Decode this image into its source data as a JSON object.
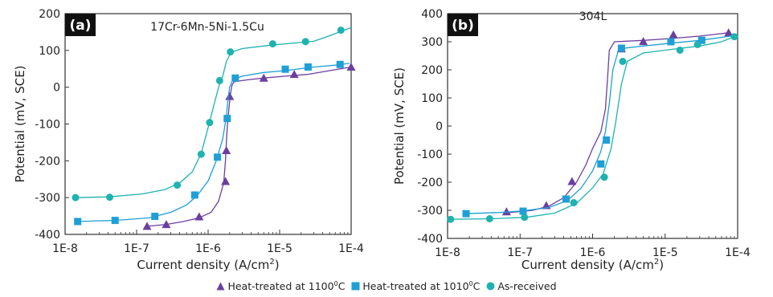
{
  "chart_data": [
    {
      "type": "line",
      "panel_label": "(a)",
      "title": "17Cr-6Mn-5Ni-1.5Cu",
      "xlabel": "Current density (A/cm",
      "xlabel_sup": "2",
      "xlabel_close": ")",
      "ylabel": "Potential (mV, SCE)",
      "xscale": "log",
      "xlim": [
        1e-08,
        0.0001
      ],
      "ylim": [
        -400,
        200
      ],
      "xticks": [
        "1E-8",
        "1E-7",
        "1E-6",
        "1E-5",
        "1E-4"
      ],
      "yticks": [
        -400,
        -300,
        -200,
        -100,
        0,
        100,
        200
      ],
      "series": [
        {
          "name": "Heat-treated at 1100°C",
          "color": "#6b3fa0",
          "marker": "triangle",
          "points": [
            [
              1.4e-07,
              -378
            ],
            [
              2.6e-07,
              -373
            ],
            [
              4.5e-07,
              -365
            ],
            [
              7.5e-07,
              -355
            ],
            [
              1.1e-06,
              -340
            ],
            [
              1.4e-06,
              -310
            ],
            [
              1.65e-06,
              -260
            ],
            [
              1.75e-06,
              -200
            ],
            [
              1.8e-06,
              -150
            ],
            [
              1.85e-06,
              -110
            ],
            [
              1.95e-06,
              -60
            ],
            [
              2.05e-06,
              -20
            ],
            [
              2.15e-06,
              5
            ],
            [
              2.3e-06,
              15
            ],
            [
              3.5e-06,
              20
            ],
            [
              6e-06,
              25
            ],
            [
              1.2e-05,
              30
            ],
            [
              2.5e-05,
              35
            ],
            [
              5e-05,
              45
            ],
            [
              0.0001,
              55
            ]
          ],
          "markers": [
            [
              1.4e-07,
              -378
            ],
            [
              2.6e-07,
              -373
            ],
            [
              7.5e-07,
              -352
            ],
            [
              1.75e-06,
              -256
            ],
            [
              1.8e-06,
              -172
            ],
            [
              2e-06,
              -25
            ],
            [
              6e-06,
              25
            ],
            [
              1.6e-05,
              35
            ],
            [
              0.0001,
              55
            ]
          ]
        },
        {
          "name": "Heat-treated at 1010°C",
          "color": "#1f9fd6",
          "marker": "square",
          "points": [
            [
              1.4e-08,
              -365
            ],
            [
              5e-08,
              -362
            ],
            [
              1.5e-07,
              -355
            ],
            [
              3e-07,
              -340
            ],
            [
              5e-07,
              -320
            ],
            [
              7e-07,
              -295
            ],
            [
              1e-06,
              -255
            ],
            [
              1.3e-06,
              -200
            ],
            [
              1.6e-06,
              -140
            ],
            [
              1.8e-06,
              -80
            ],
            [
              1.9e-06,
              -30
            ],
            [
              2e-06,
              0
            ],
            [
              2.2e-06,
              20
            ],
            [
              3e-06,
              30
            ],
            [
              6e-06,
              40
            ],
            [
              1.2e-05,
              45
            ],
            [
              3e-05,
              55
            ],
            [
              6e-05,
              60
            ],
            [
              9.5e-05,
              65
            ]
          ],
          "markers": [
            [
              1.5e-08,
              -365
            ],
            [
              5e-08,
              -362
            ],
            [
              1.8e-07,
              -351
            ],
            [
              6.5e-07,
              -293
            ],
            [
              1.35e-06,
              -190
            ],
            [
              1.85e-06,
              -85
            ],
            [
              2.4e-06,
              25
            ],
            [
              1.2e-05,
              49
            ],
            [
              2.5e-05,
              55
            ],
            [
              7e-05,
              62
            ]
          ]
        },
        {
          "name": "As-received",
          "color": "#1eb2b0",
          "marker": "circle",
          "points": [
            [
              1.4e-08,
              -300
            ],
            [
              4e-08,
              -298
            ],
            [
              1.2e-07,
              -290
            ],
            [
              2.5e-07,
              -278
            ],
            [
              4e-07,
              -260
            ],
            [
              6e-07,
              -230
            ],
            [
              8e-07,
              -180
            ],
            [
              1e-06,
              -110
            ],
            [
              1.2e-06,
              -50
            ],
            [
              1.4e-06,
              0
            ],
            [
              1.6e-06,
              30
            ],
            [
              1.8e-06,
              70
            ],
            [
              2.1e-06,
              95
            ],
            [
              3e-06,
              105
            ],
            [
              6e-06,
              112
            ],
            [
              1.2e-05,
              118
            ],
            [
              3e-05,
              125
            ],
            [
              5e-05,
              140
            ],
            [
              8e-05,
              155
            ],
            [
              0.0001,
              162
            ]
          ],
          "markers": [
            [
              1.4e-08,
              -300
            ],
            [
              4.2e-08,
              -299
            ],
            [
              3.7e-07,
              -266
            ],
            [
              8e-07,
              -182
            ],
            [
              1.05e-06,
              -96
            ],
            [
              1.45e-06,
              18
            ],
            [
              2.05e-06,
              96
            ],
            [
              8e-06,
              118
            ],
            [
              2.3e-05,
              124
            ],
            [
              7.2e-05,
              155
            ]
          ]
        }
      ]
    },
    {
      "type": "line",
      "panel_label": "(b)",
      "title": "304L",
      "xlabel": "Current density (A/cm",
      "xlabel_sup": "2",
      "xlabel_close": ")",
      "ylabel": "Potential (mV, SCE)",
      "xscale": "log",
      "xlim": [
        1e-08,
        0.0001
      ],
      "ylim": [
        -400,
        400
      ],
      "xticks": [
        "1E-8",
        "1E-7",
        "1E-6",
        "1E-5",
        "1E-4"
      ],
      "yticks": [
        -400,
        -300,
        -200,
        -100,
        0,
        100,
        200,
        300,
        400
      ],
      "series": [
        {
          "name": "Heat-treated at 1100°C",
          "color": "#6b3fa0",
          "marker": "triangle",
          "points": [
            [
              6e-08,
              -310
            ],
            [
              1.5e-07,
              -300
            ],
            [
              2.5e-07,
              -285
            ],
            [
              4e-07,
              -255
            ],
            [
              6e-07,
              -200
            ],
            [
              8e-07,
              -140
            ],
            [
              1e-06,
              -80
            ],
            [
              1.3e-06,
              -20
            ],
            [
              1.5e-06,
              60
            ],
            [
              1.6e-06,
              160
            ],
            [
              1.7e-06,
              270
            ],
            [
              2e-06,
              300
            ],
            [
              5e-06,
              305
            ],
            [
              1e-05,
              310
            ],
            [
              3e-05,
              320
            ],
            [
              7.5e-05,
              332
            ]
          ],
          "markers": [
            [
              6.5e-08,
              -305
            ],
            [
              2.3e-07,
              -283
            ],
            [
              5.2e-07,
              -197
            ],
            [
              2.5e-06,
              275
            ],
            [
              5e-06,
              301
            ],
            [
              1.3e-05,
              325
            ],
            [
              7.5e-05,
              332
            ]
          ]
        },
        {
          "name": "Heat-treated at 1010°C",
          "color": "#1f9fd6",
          "marker": "square",
          "points": [
            [
              1.7e-08,
              -312
            ],
            [
              5e-08,
              -308
            ],
            [
              1.1e-07,
              -302
            ],
            [
              2.5e-07,
              -290
            ],
            [
              4.5e-07,
              -265
            ],
            [
              7e-07,
              -220
            ],
            [
              1e-06,
              -160
            ],
            [
              1.3e-06,
              -90
            ],
            [
              1.5e-06,
              -20
            ],
            [
              1.7e-06,
              80
            ],
            [
              1.9e-06,
              200
            ],
            [
              2.3e-06,
              275
            ],
            [
              5e-06,
              285
            ],
            [
              1.2e-05,
              295
            ],
            [
              3e-05,
              305
            ],
            [
              8e-05,
              320
            ]
          ],
          "markers": [
            [
              1.8e-08,
              -312
            ],
            [
              1.1e-07,
              -303
            ],
            [
              4.3e-07,
              -260
            ],
            [
              1.3e-06,
              -135
            ],
            [
              1.55e-06,
              -50
            ],
            [
              2.5e-06,
              277
            ],
            [
              1.2e-05,
              300
            ],
            [
              3.2e-05,
              305
            ]
          ]
        },
        {
          "name": "As-received",
          "color": "#1eb2b0",
          "marker": "circle",
          "points": [
            [
              1.1e-08,
              -332
            ],
            [
              4e-08,
              -330
            ],
            [
              1.2e-07,
              -325
            ],
            [
              3e-07,
              -310
            ],
            [
              6e-07,
              -275
            ],
            [
              1e-06,
              -220
            ],
            [
              1.4e-06,
              -170
            ],
            [
              1.8e-06,
              -80
            ],
            [
              2.1e-06,
              20
            ],
            [
              2.5e-06,
              150
            ],
            [
              3e-06,
              230
            ],
            [
              5e-06,
              260
            ],
            [
              1e-05,
              270
            ],
            [
              3e-05,
              285
            ],
            [
              6e-05,
              300
            ],
            [
              9e-05,
              318
            ]
          ],
          "markers": [
            [
              1.1e-08,
              -332
            ],
            [
              3.8e-08,
              -330
            ],
            [
              1.15e-07,
              -325
            ],
            [
              5.5e-07,
              -273
            ],
            [
              1.45e-06,
              -182
            ],
            [
              2.6e-06,
              230
            ],
            [
              1.6e-05,
              270
            ],
            [
              2.8e-05,
              290
            ],
            [
              9e-05,
              318
            ]
          ]
        }
      ]
    }
  ],
  "legend": {
    "items": [
      {
        "label": "Heat-treated at 1100",
        "sup": "0",
        "unit": "C",
        "marker": "triangle",
        "color": "#6b3fa0"
      },
      {
        "label": "Heat-treated at 1010",
        "sup": "0",
        "unit": "C",
        "marker": "square",
        "color": "#1f9fd6"
      },
      {
        "label": "As-received",
        "sup": "",
        "unit": "",
        "marker": "circle",
        "color": "#1eb2b0"
      }
    ]
  }
}
